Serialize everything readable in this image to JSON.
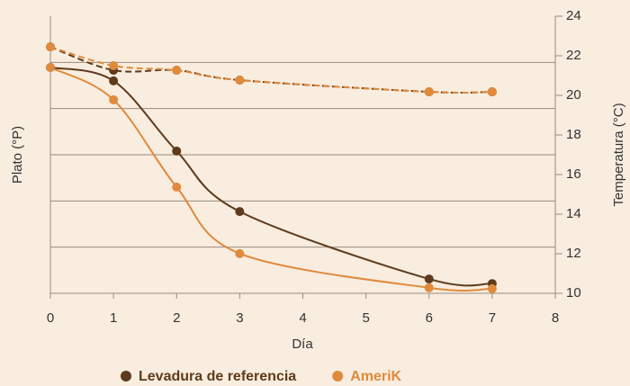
{
  "chart_data": {
    "type": "line",
    "x_label": "Día",
    "y_label": "Plato (°P)",
    "y2_label": "Temperatura (°C)",
    "x": [
      0,
      1,
      2,
      3,
      6,
      7
    ],
    "xlim": [
      0,
      8
    ],
    "xticks": [
      0,
      1,
      2,
      3,
      4,
      5,
      6,
      7,
      8
    ],
    "ylim": [
      0,
      6
    ],
    "ygrid": [
      1,
      2,
      3,
      4,
      5
    ],
    "y2lim": [
      10,
      24
    ],
    "y2ticks": [
      10,
      12,
      14,
      16,
      18,
      20,
      22,
      24
    ],
    "series": [
      {
        "name": "Levadura de referencia",
        "color": "#5e3b1c",
        "values": [
          4.89,
          4.6,
          3.08,
          1.77,
          0.31,
          0.21
        ]
      },
      {
        "name": "AmeriK",
        "color": "#e08a3c",
        "values": [
          4.89,
          4.19,
          2.3,
          0.86,
          0.12,
          0.1
        ]
      }
    ],
    "y2_series": [
      {
        "color": "#5e3b1c",
        "axis": "y2",
        "dashed": true,
        "values": [
          22.45,
          21.27,
          21.27,
          20.77,
          20.18,
          20.18
        ]
      },
      {
        "color": "#e08a3c",
        "axis": "y2",
        "dashed": true,
        "values": [
          22.45,
          21.5,
          21.27,
          20.77,
          20.18,
          20.18
        ]
      }
    ]
  }
}
